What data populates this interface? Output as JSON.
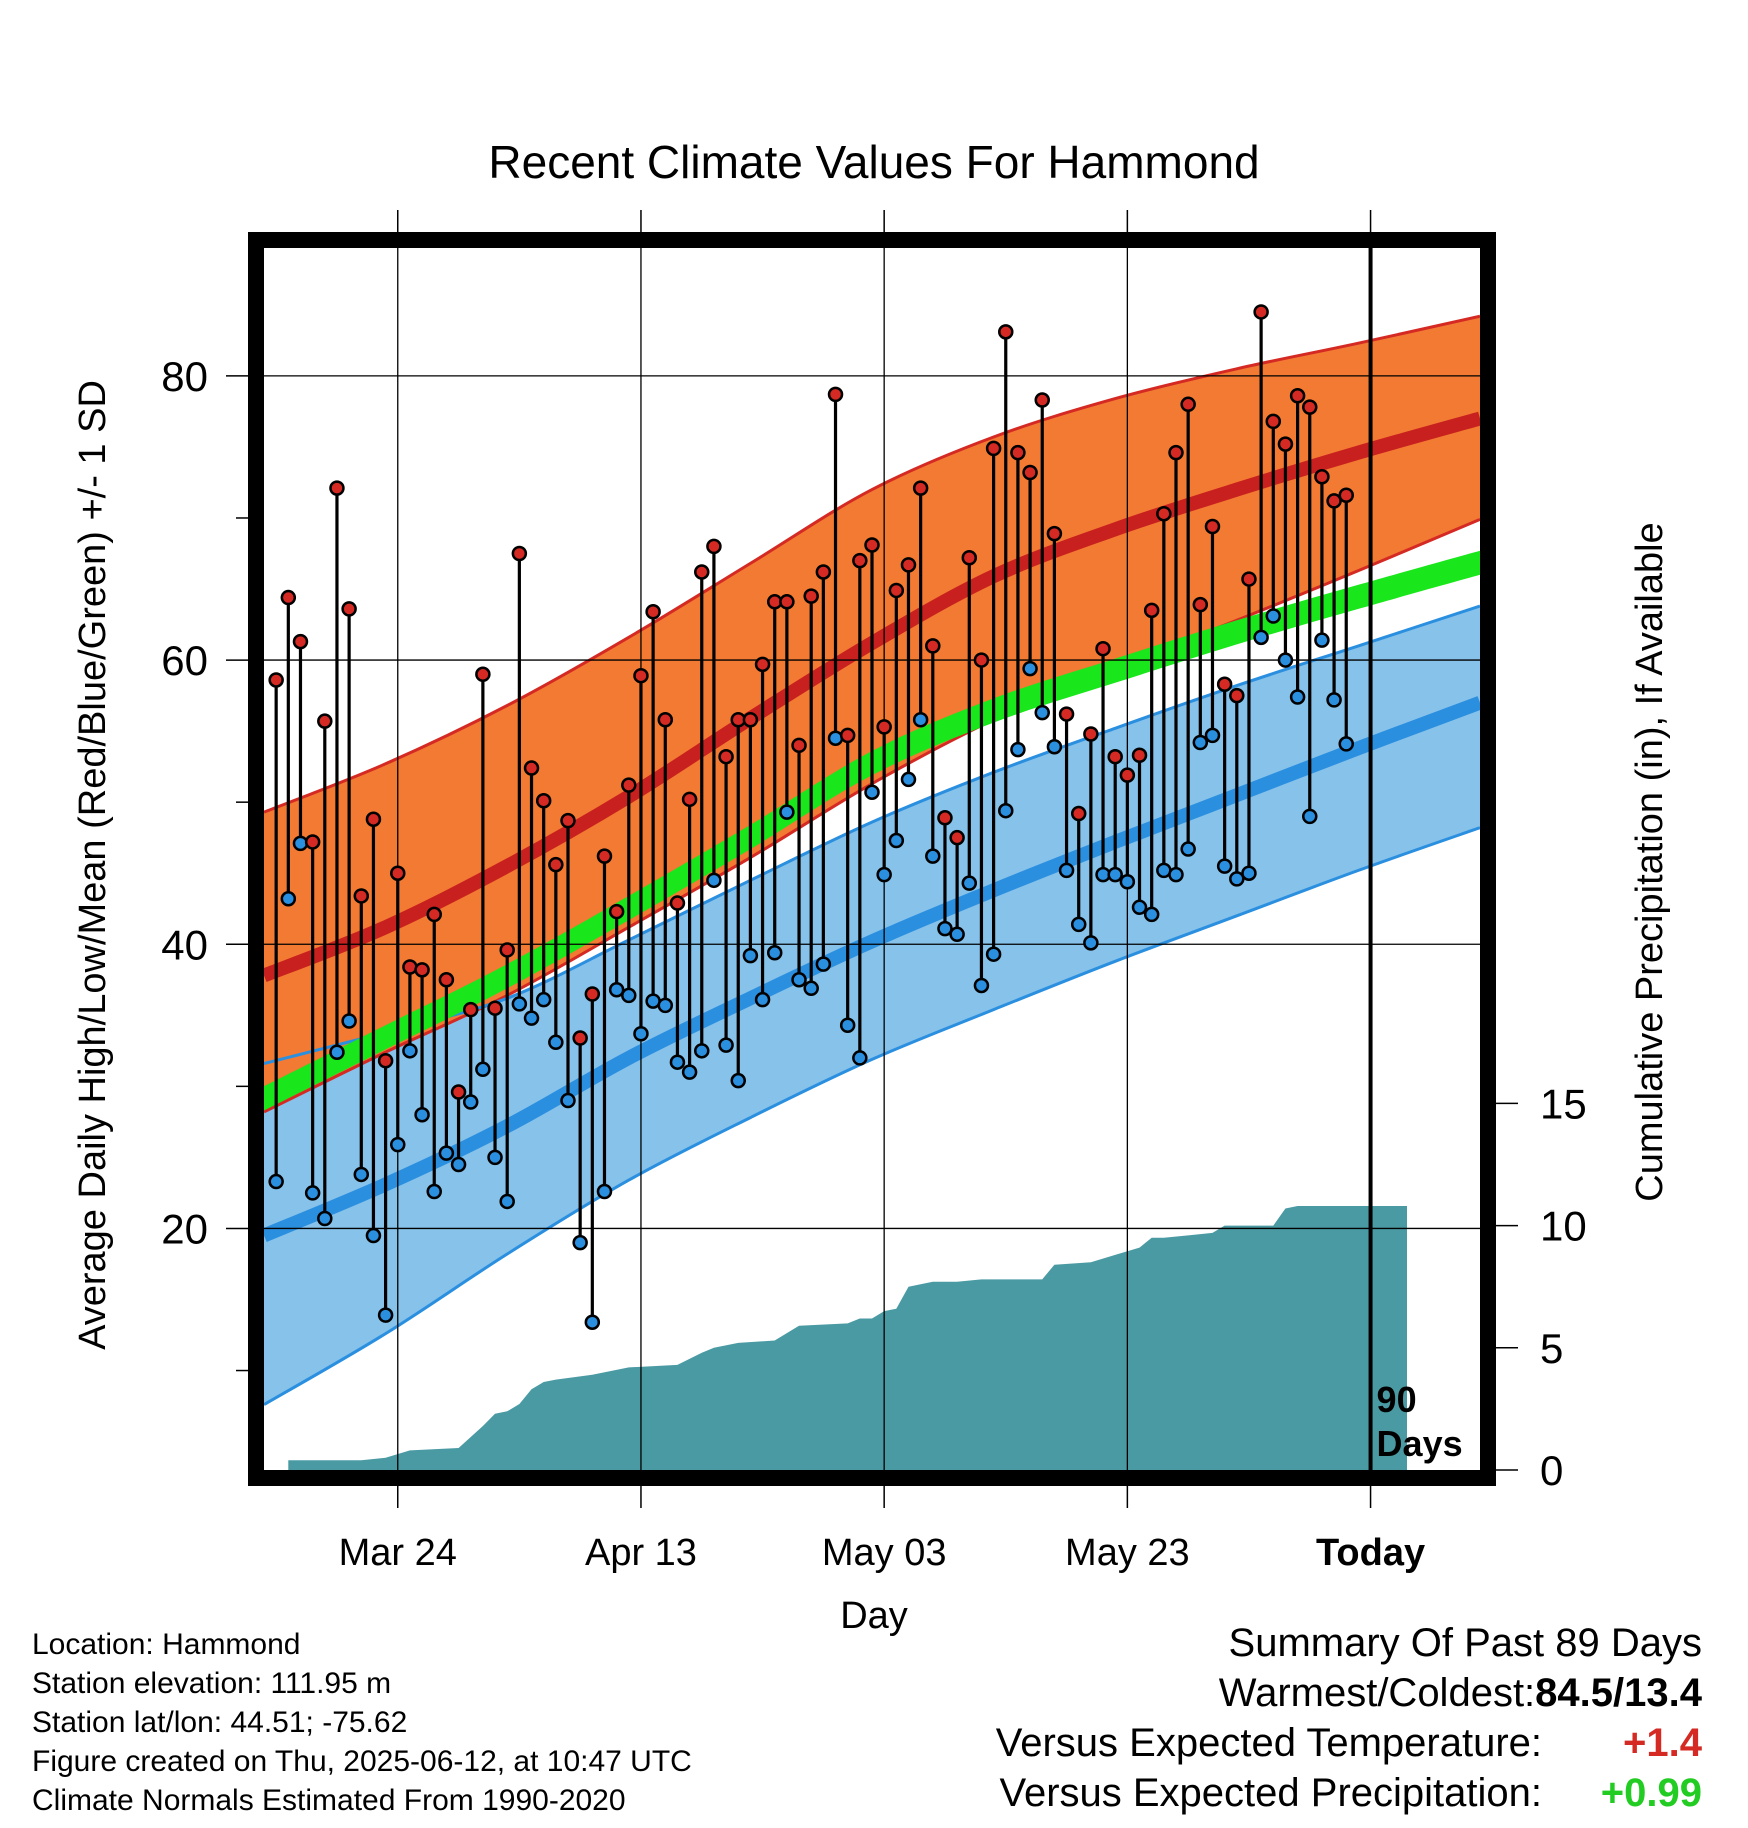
{
  "chart_data": {
    "type": "line",
    "title": "Recent Climate Values For Hammond",
    "xlabel": "Day",
    "ylabel": "Average Daily High/Low/Mean (Red/Blue/Green) +/- 1 SD",
    "y2label": "Cumulative Precipitation (in), If Available",
    "x_tick_labels": [
      "Mar 24",
      "Apr 13",
      "May 03",
      "May 23",
      "Today"
    ],
    "x_tick_days": [
      10,
      30,
      50,
      70,
      90
    ],
    "y_ticks": [
      20,
      40,
      60,
      80
    ],
    "y2_ticks": [
      0,
      5,
      10,
      15
    ],
    "ylim": [
      3,
      89
    ],
    "y2lim": [
      0,
      50
    ],
    "xlim": [
      -1,
      99
    ],
    "grid": true,
    "today_marker": {
      "day": 90,
      "label_line1": "90",
      "label_line2": "Days"
    },
    "normals": {
      "days": [
        -1,
        9,
        19,
        29,
        39,
        49,
        59,
        69,
        79,
        89,
        99
      ],
      "high_upper": [
        49.3,
        52.7,
        56.8,
        61.6,
        66.8,
        72.0,
        75.7,
        78.4,
        80.5,
        82.3,
        84.2
      ],
      "high_mean": [
        37.8,
        41.2,
        45.5,
        50.4,
        55.9,
        61.2,
        65.9,
        69.2,
        72.0,
        74.6,
        77.0
      ],
      "high_lower": [
        28.2,
        32.4,
        36.4,
        41.2,
        46.1,
        51.3,
        55.8,
        59.5,
        62.8,
        66.3,
        69.9
      ],
      "mean_upper": [
        30.0,
        34.3,
        38.6,
        43.4,
        48.4,
        53.6,
        57.3,
        60.1,
        62.8,
        65.3,
        67.7
      ],
      "mean_lower": [
        28.3,
        32.6,
        36.9,
        41.7,
        46.7,
        51.9,
        55.6,
        58.4,
        61.1,
        63.6,
        66.0
      ],
      "low_upper": [
        31.6,
        33.8,
        36.2,
        40.3,
        44.5,
        48.6,
        52.1,
        55.2,
        58.2,
        61.0,
        63.8
      ],
      "low_mean": [
        19.5,
        23.1,
        27.2,
        32.0,
        36.2,
        40.2,
        43.8,
        47.2,
        50.5,
        53.8,
        57.0
      ],
      "low_lower": [
        7.6,
        12.6,
        18.2,
        23.4,
        27.8,
        31.9,
        35.4,
        38.8,
        42.0,
        45.2,
        48.2
      ]
    },
    "series": [
      {
        "name": "High",
        "color": "#d42a23",
        "values": [
          58.6,
          64.4,
          61.3,
          47.2,
          55.7,
          72.1,
          63.6,
          43.4,
          48.8,
          31.8,
          45.0,
          38.4,
          38.2,
          42.1,
          37.5,
          29.6,
          35.4,
          59.0,
          35.5,
          39.6,
          67.5,
          52.4,
          50.1,
          45.6,
          48.7,
          33.4,
          36.5,
          46.2,
          42.3,
          51.2,
          58.9,
          63.4,
          55.8,
          42.9,
          50.2,
          66.2,
          68.0,
          53.2,
          55.8,
          55.8,
          59.7,
          64.1,
          64.1,
          54.0,
          64.5,
          66.2,
          78.7,
          54.7,
          67.0,
          68.1,
          55.3,
          64.9,
          66.7,
          72.1,
          61.0,
          48.9,
          47.5,
          67.2,
          60.0,
          74.9,
          83.1,
          74.6,
          73.2,
          78.3,
          68.9,
          56.2,
          49.2,
          54.8,
          60.8,
          53.2,
          51.9,
          53.3,
          63.5,
          70.3,
          74.6,
          78.0,
          63.9,
          69.4,
          58.3,
          57.5,
          65.7,
          84.5,
          76.8,
          75.2,
          78.6,
          77.8,
          72.9,
          71.2,
          71.6
        ]
      },
      {
        "name": "Low",
        "color": "#2b8fe0",
        "values": [
          23.3,
          43.2,
          47.1,
          22.5,
          20.7,
          32.4,
          34.6,
          23.8,
          19.5,
          13.9,
          25.9,
          32.5,
          28.0,
          22.6,
          25.3,
          24.5,
          28.9,
          31.2,
          25.0,
          21.9,
          35.8,
          34.8,
          36.1,
          33.1,
          29.0,
          19.0,
          13.4,
          22.6,
          36.8,
          36.4,
          33.7,
          36.0,
          35.7,
          31.7,
          31.0,
          32.5,
          44.5,
          32.9,
          30.4,
          39.2,
          36.1,
          39.4,
          49.3,
          37.5,
          36.9,
          38.6,
          54.5,
          34.3,
          32.0,
          50.7,
          44.9,
          47.3,
          51.6,
          55.8,
          46.2,
          41.1,
          40.7,
          44.3,
          37.1,
          39.3,
          49.4,
          53.7,
          59.4,
          56.3,
          53.9,
          45.2,
          41.4,
          40.1,
          44.9,
          44.9,
          44.4,
          42.6,
          42.1,
          45.2,
          44.9,
          46.7,
          54.2,
          54.7,
          45.5,
          44.6,
          45.0,
          61.6,
          63.1,
          60.0,
          57.4,
          49.0,
          61.4,
          57.2,
          54.1
        ]
      }
    ],
    "precip": {
      "name": "Cumulative Precipitation",
      "color": "#4a9aa3",
      "days": [
        1,
        3,
        7,
        9,
        11,
        15,
        17,
        18,
        19,
        20,
        21,
        22,
        23,
        26,
        29,
        33,
        35,
        36,
        38,
        41,
        43,
        47,
        48,
        49,
        50,
        51,
        52,
        53,
        54,
        56,
        58,
        63,
        64,
        67,
        69,
        71,
        72,
        73,
        75,
        77,
        78,
        79,
        82,
        83,
        84,
        93
      ],
      "values": [
        0.4,
        0.4,
        0.4,
        0.5,
        0.8,
        0.9,
        1.8,
        2.3,
        2.4,
        2.7,
        3.3,
        3.6,
        3.7,
        3.9,
        4.2,
        4.3,
        4.8,
        5.0,
        5.2,
        5.3,
        5.9,
        6.0,
        6.2,
        6.2,
        6.5,
        6.6,
        7.5,
        7.6,
        7.7,
        7.7,
        7.8,
        7.8,
        8.4,
        8.5,
        8.8,
        9.1,
        9.5,
        9.5,
        9.6,
        9.7,
        10.0,
        10.0,
        10.0,
        10.7,
        10.8,
        10.8
      ]
    }
  },
  "footer": {
    "location": "Location: Hammond",
    "elevation": "Station elevation: 111.95 m",
    "latlon": "Station lat/lon: 44.51; -75.62",
    "created": "Figure created on Thu, 2025-06-12, at 10:47 UTC",
    "normals": "Climate Normals Estimated From 1990-2020"
  },
  "summary": {
    "title": "Summary Of Past 89 Days",
    "warmest_label": "Warmest/Coldest:",
    "warmest_value": "84.5/13.4",
    "temp_label": "Versus Expected Temperature:",
    "temp_value": "+1.4",
    "temp_color": "#d42a23",
    "precip_label": "Versus Expected Precipitation:",
    "precip_value": "+0.99",
    "precip_color": "#22cc22"
  }
}
